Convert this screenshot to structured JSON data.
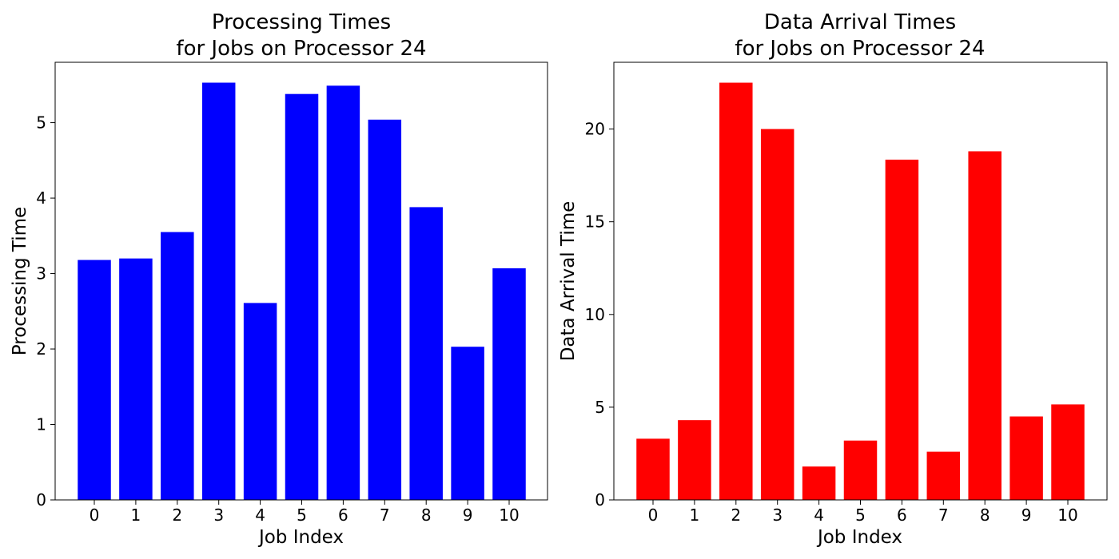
{
  "chart_data": [
    {
      "type": "bar",
      "title_lines": [
        "Processing Times",
        "for Jobs on Processor 24"
      ],
      "xlabel": "Job Index",
      "ylabel": "Processing Time",
      "categories": [
        "0",
        "1",
        "2",
        "3",
        "4",
        "5",
        "6",
        "7",
        "8",
        "9",
        "10"
      ],
      "values": [
        3.18,
        3.2,
        3.55,
        5.53,
        2.61,
        5.38,
        5.49,
        5.04,
        3.88,
        2.03,
        3.07
      ],
      "ylim": [
        0,
        5.8
      ],
      "yticks": [
        0,
        1,
        2,
        3,
        4,
        5
      ],
      "color": "#0000ff",
      "grid": false
    },
    {
      "type": "bar",
      "title_lines": [
        "Data Arrival Times",
        "for Jobs on Processor 24"
      ],
      "xlabel": "Job Index",
      "ylabel": "Data Arrival Time",
      "categories": [
        "0",
        "1",
        "2",
        "3",
        "4",
        "5",
        "6",
        "7",
        "8",
        "9",
        "10"
      ],
      "values": [
        3.3,
        4.3,
        22.5,
        20.0,
        1.8,
        3.2,
        18.35,
        2.6,
        18.8,
        4.5,
        5.15
      ],
      "ylim": [
        0,
        23.6
      ],
      "yticks": [
        0,
        5,
        10,
        15,
        20
      ],
      "color": "#ff0000",
      "grid": false
    }
  ]
}
